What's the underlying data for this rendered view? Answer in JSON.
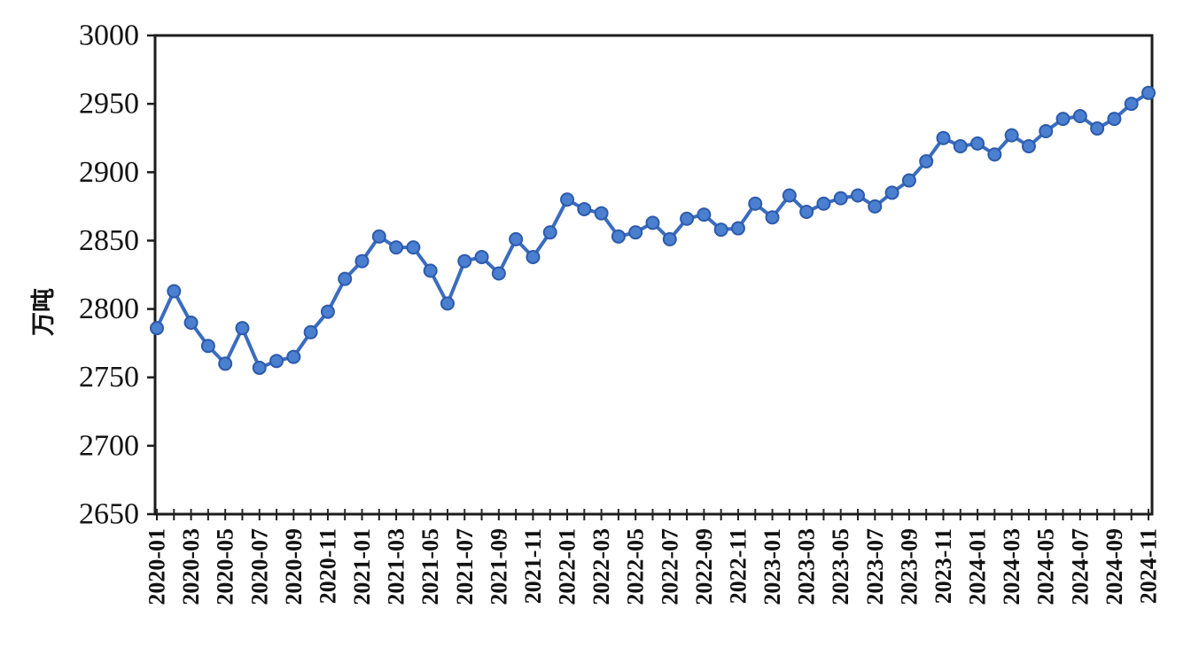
{
  "chart_data": {
    "type": "line",
    "title": "",
    "xlabel": "",
    "ylabel": "万吨",
    "ylim": [
      2650,
      3000
    ],
    "yticks": [
      2650,
      2700,
      2750,
      2800,
      2850,
      2900,
      2950,
      3000
    ],
    "xtick_label_every": 2,
    "grid": false,
    "legend": null,
    "line_color": "#3a6cc0",
    "marker_fill": "#4a80cf",
    "marker_edge": "#2d5aab",
    "axis_color": "#1c1c1c",
    "text_color": "#121212",
    "categories": [
      "2020-01",
      "2020-02",
      "2020-03",
      "2020-04",
      "2020-05",
      "2020-06",
      "2020-07",
      "2020-08",
      "2020-09",
      "2020-10",
      "2020-11",
      "2020-12",
      "2021-01",
      "2021-02",
      "2021-03",
      "2021-04",
      "2021-05",
      "2021-06",
      "2021-07",
      "2021-08",
      "2021-09",
      "2021-10",
      "2021-11",
      "2021-12",
      "2022-01",
      "2022-02",
      "2022-03",
      "2022-04",
      "2022-05",
      "2022-06",
      "2022-07",
      "2022-08",
      "2022-09",
      "2022-10",
      "2022-11",
      "2022-12",
      "2023-01",
      "2023-02",
      "2023-03",
      "2023-04",
      "2023-05",
      "2023-06",
      "2023-07",
      "2023-08",
      "2023-09",
      "2023-10",
      "2023-11",
      "2023-12",
      "2024-01",
      "2024-02",
      "2024-03",
      "2024-04",
      "2024-05",
      "2024-06",
      "2024-07",
      "2024-08",
      "2024-09",
      "2024-10",
      "2024-11"
    ],
    "values": [
      2786,
      2813,
      2790,
      2773,
      2760,
      2786,
      2757,
      2762,
      2765,
      2783,
      2798,
      2822,
      2835,
      2853,
      2845,
      2845,
      2828,
      2804,
      2835,
      2838,
      2826,
      2851,
      2838,
      2856,
      2880,
      2873,
      2870,
      2853,
      2856,
      2863,
      2851,
      2866,
      2869,
      2858,
      2859,
      2877,
      2867,
      2883,
      2871,
      2877,
      2881,
      2883,
      2875,
      2885,
      2894,
      2908,
      2925,
      2919,
      2921,
      2913,
      2927,
      2919,
      2930,
      2939,
      2941,
      2932,
      2939,
      2950,
      2958
    ]
  }
}
